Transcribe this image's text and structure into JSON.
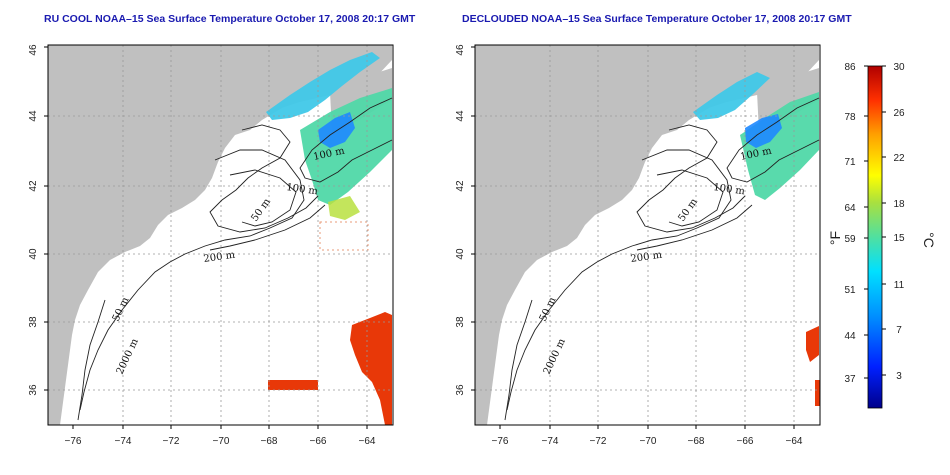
{
  "panels": [
    {
      "id": "left",
      "title": "RU COOL NOAA–15 Sea Surface Temperature October 17, 2008 20:17 GMT"
    },
    {
      "id": "right",
      "title": "DECLOUDED NOAA–15 Sea Surface Temperature October 17, 2008 20:17 GMT"
    }
  ],
  "map": {
    "lon_range": [
      -77,
      -63
    ],
    "lat_range": [
      35,
      46
    ],
    "lon_ticks": [
      "−76",
      "−74",
      "−72",
      "−70",
      "−68",
      "−66",
      "−64"
    ],
    "lat_ticks": [
      "36",
      "38",
      "40",
      "42",
      "44",
      "46"
    ],
    "land_color": "#c0c0c0",
    "grid": "dotted"
  },
  "contours": {
    "labels": [
      "100 m",
      "100 m",
      "50 m",
      "200 m",
      "50 m",
      "2000 m"
    ]
  },
  "colorbar": {
    "fahrenheit_labels": [
      "86",
      "78",
      "71",
      "64",
      "59",
      "51",
      "44",
      "37"
    ],
    "celsius_labels": [
      "30",
      "26",
      "22",
      "18",
      "15",
      "11",
      "7",
      "3"
    ],
    "left_unit": "°F",
    "right_unit": "°C",
    "colors": [
      "#00008b",
      "#0000ff",
      "#0080ff",
      "#00e0ff",
      "#40e0a0",
      "#a0e040",
      "#ffff00",
      "#ffa000",
      "#ff4000",
      "#b00000"
    ]
  }
}
